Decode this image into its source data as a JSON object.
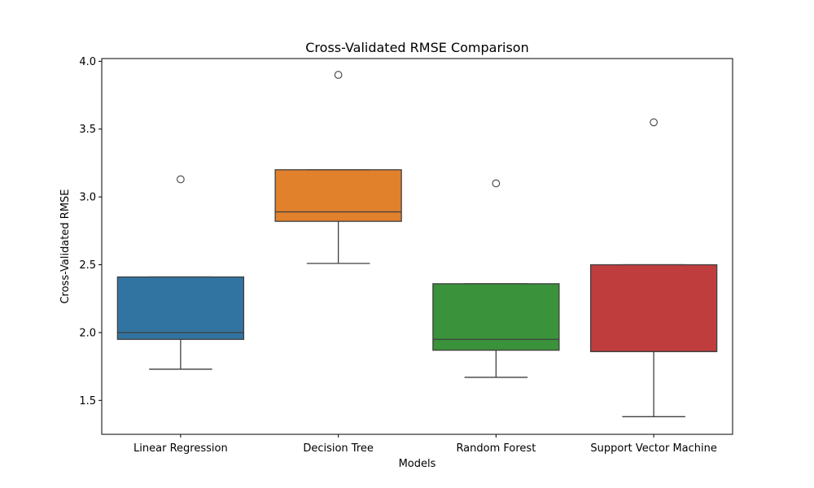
{
  "chart_data": {
    "type": "box",
    "title": "Cross-Validated RMSE Comparison",
    "xlabel": "Models",
    "ylabel": "Cross-Validated RMSE",
    "ylim": [
      1.25,
      4.02
    ],
    "yticks": [
      "1.5",
      "2.0",
      "2.5",
      "3.0",
      "3.5",
      "4.0"
    ],
    "grid": false,
    "categories": [
      "Linear Regression",
      "Decision Tree",
      "Random Forest",
      "Support Vector Machine"
    ],
    "boxes": [
      {
        "category": "Linear Regression",
        "whisker_low": 1.73,
        "q1": 1.95,
        "median": 2.0,
        "q3": 2.41,
        "whisker_high": 2.41,
        "outliers": [
          3.13
        ],
        "color": "#3274a1"
      },
      {
        "category": "Decision Tree",
        "whisker_low": 2.51,
        "q1": 2.82,
        "median": 2.89,
        "q3": 3.2,
        "whisker_high": 3.2,
        "outliers": [
          3.9
        ],
        "color": "#e1812c"
      },
      {
        "category": "Random Forest",
        "whisker_low": 1.67,
        "q1": 1.87,
        "median": 1.95,
        "q3": 2.36,
        "whisker_high": 2.36,
        "outliers": [
          3.1
        ],
        "color": "#3a923a"
      },
      {
        "category": "Support Vector Machine",
        "whisker_low": 1.38,
        "q1": 1.86,
        "median": 1.86,
        "q3": 2.5,
        "whisker_high": 2.5,
        "outliers": [
          3.55
        ],
        "color": "#c03d3e"
      }
    ]
  }
}
